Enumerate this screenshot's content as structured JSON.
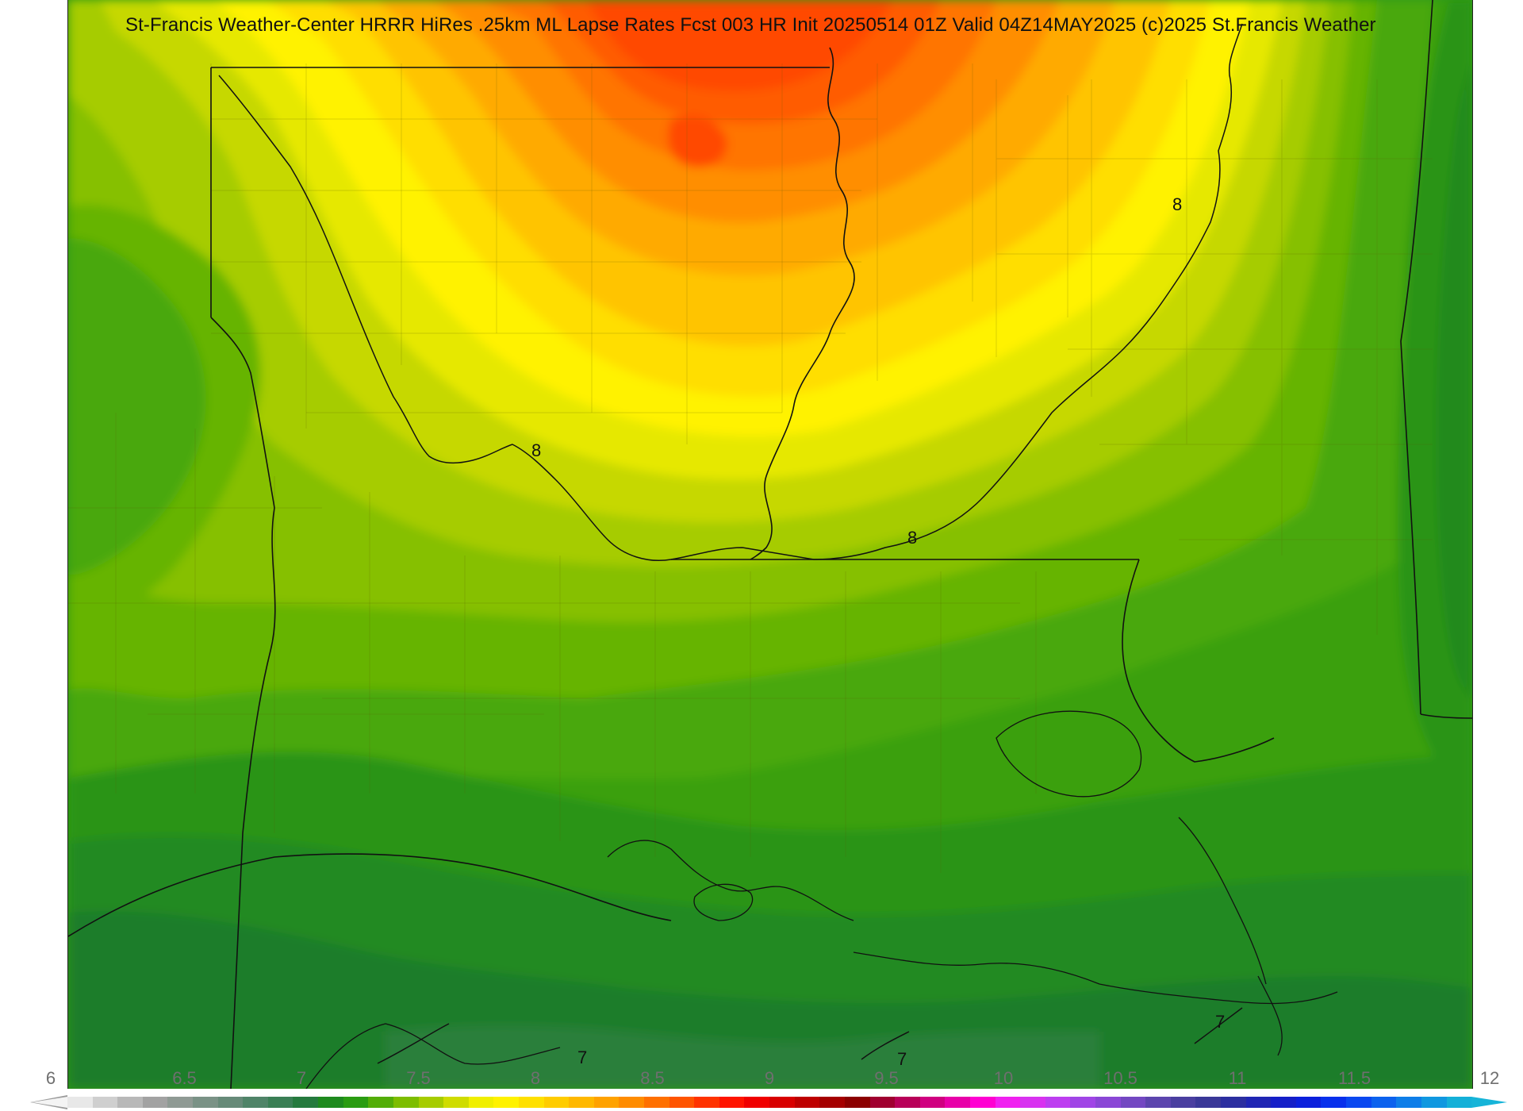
{
  "title": "St-Francis Weather-Center HRRR HiRes .25km ML Lapse Rates  Fcst 003 HR Init 20250514 01Z  Valid 04Z14MAY2025   (c)2025 St.Francis Weather",
  "colorbar": {
    "min": 6,
    "max": 12,
    "tick_labels": [
      "6",
      "6.5",
      "7",
      "7.5",
      "8",
      "8.5",
      "9",
      "9.5",
      "10",
      "10.5",
      "11",
      "11.5",
      "12"
    ],
    "colors": [
      "#e8e8e8",
      "#cfcfcf",
      "#b8b8b8",
      "#a2a2a2",
      "#8f9a94",
      "#7a9286",
      "#668a78",
      "#4f8468",
      "#3a7f55",
      "#257a3e",
      "#1e8a1e",
      "#2a9c12",
      "#53ad08",
      "#7dbd00",
      "#a6cc00",
      "#cfdc00",
      "#f0ef00",
      "#fff200",
      "#ffe000",
      "#ffcc00",
      "#ffb800",
      "#ffa200",
      "#ff8c00",
      "#ff7000",
      "#ff5400",
      "#ff3300",
      "#ff1400",
      "#f00000",
      "#d80000",
      "#be0000",
      "#a50000",
      "#8c0000",
      "#a00030",
      "#b80058",
      "#d00080",
      "#e800a8",
      "#ff00d2",
      "#f020f0",
      "#d832f0",
      "#bd3ef0",
      "#a045e6",
      "#8a47d6",
      "#7348c2",
      "#5c45ae",
      "#4a3fa0",
      "#3a3898",
      "#2c2fa0",
      "#2026b4",
      "#151fc8",
      "#0c20dc",
      "#0830ec",
      "#0a48f0",
      "#0c62ee",
      "#0e7ee8",
      "#1098e0",
      "#14b0d8"
    ]
  },
  "contour_labels": [
    "8",
    "8",
    "8",
    "7",
    "7",
    "7"
  ],
  "contour_level_values": [
    8,
    7
  ]
}
